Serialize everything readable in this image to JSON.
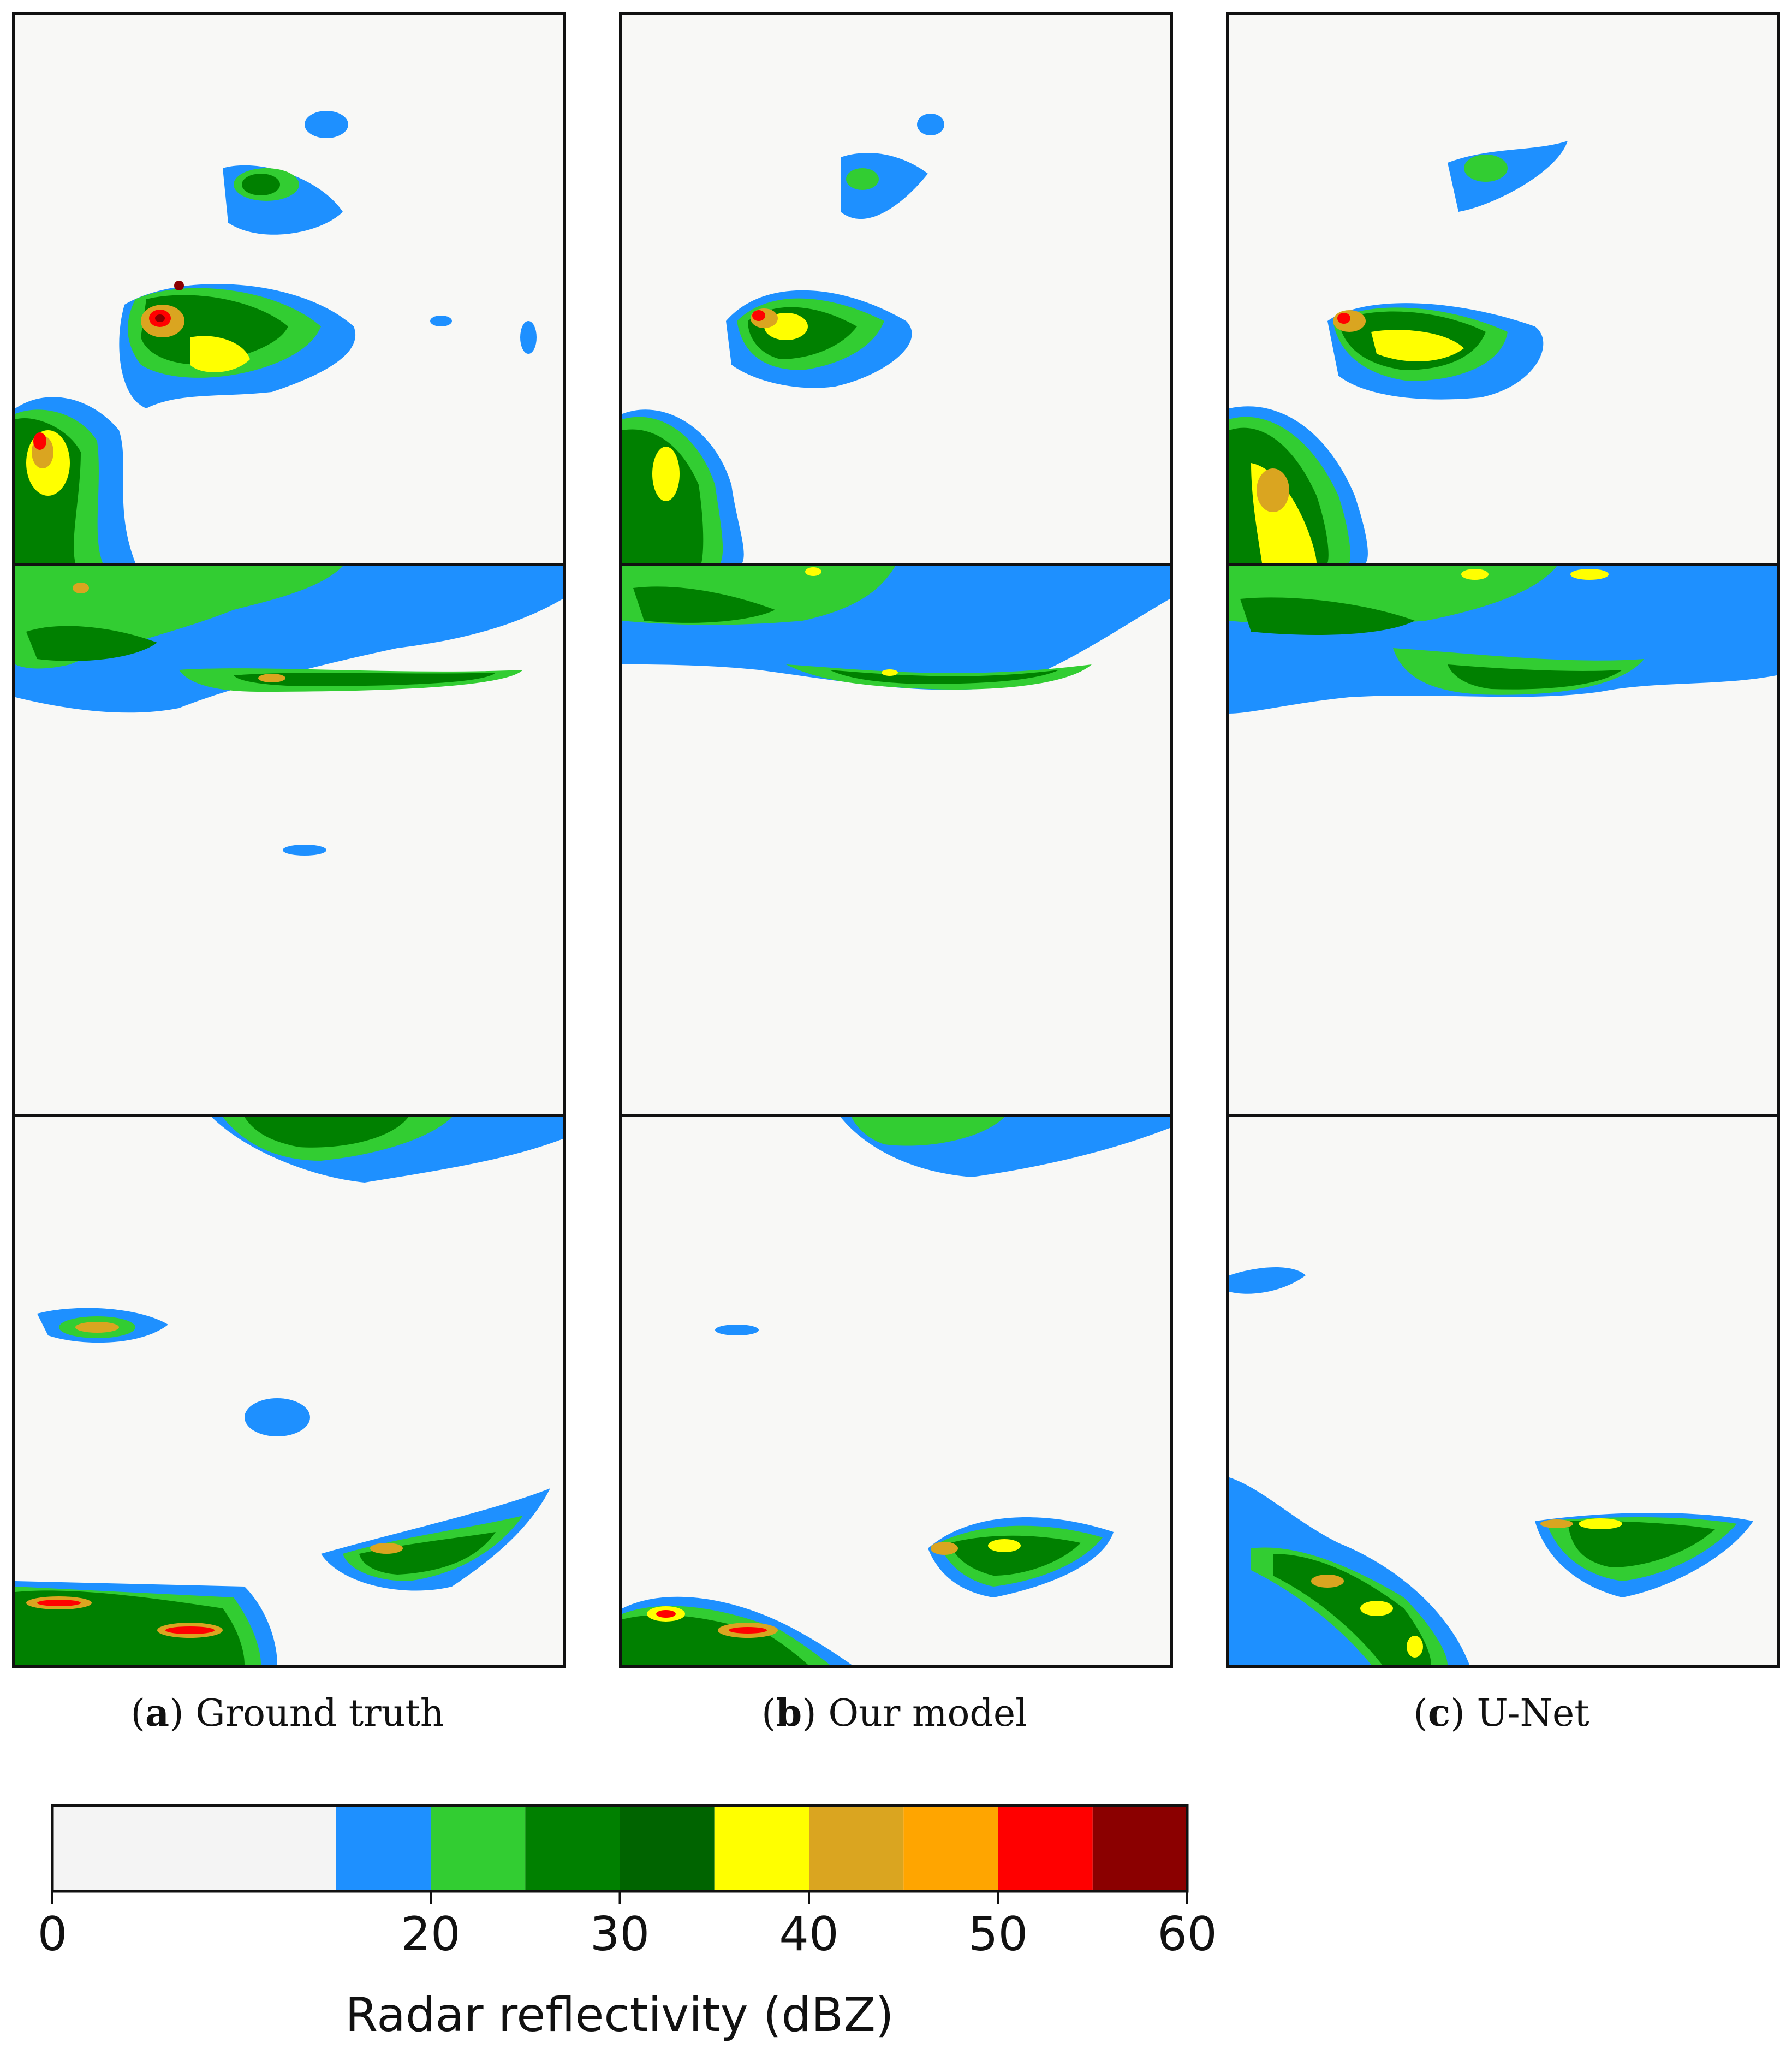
{
  "columns": [
    {
      "letter": "a",
      "label": "Ground truth"
    },
    {
      "letter": "b",
      "label": "Our model"
    },
    {
      "letter": "c",
      "label": "U-Net"
    }
  ],
  "colorbar": {
    "label": "Radar reflectivity (dBZ)",
    "ticks": [
      "0",
      "20",
      "30",
      "40",
      "50",
      "60"
    ],
    "tick_values": [
      0,
      20,
      30,
      40,
      50,
      60
    ],
    "bins": [
      {
        "from": 0,
        "to": 15,
        "color": "#f4f4f4"
      },
      {
        "from": 15,
        "to": 20,
        "color": "#1e90ff"
      },
      {
        "from": 20,
        "to": 25,
        "color": "#32cd32"
      },
      {
        "from": 25,
        "to": 30,
        "color": "#008000"
      },
      {
        "from": 30,
        "to": 35,
        "color": "#006400"
      },
      {
        "from": 35,
        "to": 40,
        "color": "#ffff00"
      },
      {
        "from": 40,
        "to": 45,
        "color": "#daa520"
      },
      {
        "from": 45,
        "to": 50,
        "color": "#ffa500"
      },
      {
        "from": 50,
        "to": 55,
        "color": "#ff0000"
      },
      {
        "from": 55,
        "to": 60,
        "color": "#8b0000"
      }
    ]
  }
}
